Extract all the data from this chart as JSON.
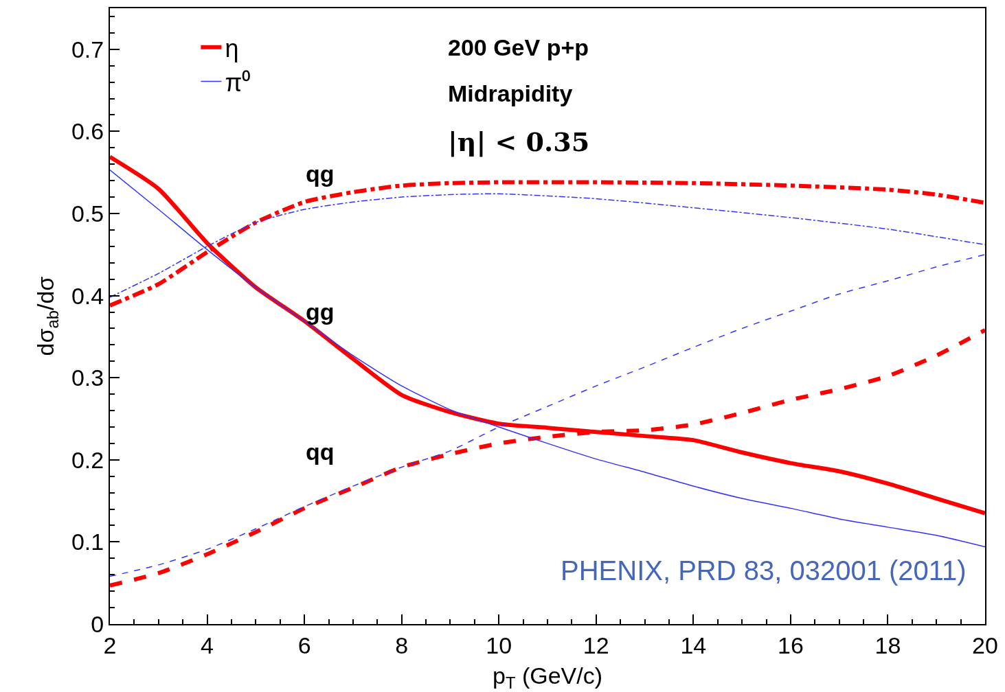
{
  "chart_data": {
    "type": "line",
    "xlabel": "p$_{T}$ (GeV/c)",
    "ylabel": "dσ$_{ab}$/dσ",
    "xlim": [
      2,
      20
    ],
    "xticks": [
      2,
      4,
      6,
      8,
      10,
      12,
      14,
      16,
      18,
      20
    ],
    "ylim": [
      0,
      0.75
    ],
    "yticks": [
      0,
      0.1,
      0.2,
      0.3,
      0.4,
      0.5,
      0.6,
      0.7
    ],
    "legend": "top left",
    "marker": "none",
    "series": [
      {
        "name": "η",
        "color": "#ff0000",
        "line_style": "solid",
        "x": [
          2,
          3,
          4,
          5,
          6,
          7,
          8,
          9,
          10,
          11,
          12,
          13,
          14,
          15,
          16,
          17,
          18,
          19,
          20
        ],
        "values": [
          0.569,
          0.53,
          0.464,
          0.41,
          0.369,
          0.323,
          0.279,
          0.258,
          0.244,
          0.239,
          0.234,
          0.229,
          0.224,
          0.209,
          0.196,
          0.186,
          0.171,
          0.153,
          0.135
        ]
      },
      {
        "color": "#ff0000",
        "line_style": "dashdot",
        "x": [
          2,
          3,
          4,
          5,
          6,
          7,
          8,
          9,
          10,
          12,
          14,
          16,
          18,
          19,
          20
        ],
        "values": [
          0.388,
          0.414,
          0.453,
          0.489,
          0.514,
          0.526,
          0.534,
          0.537,
          0.538,
          0.538,
          0.537,
          0.534,
          0.529,
          0.523,
          0.513
        ]
      },
      {
        "color": "#ff0000",
        "line_style": "dashed",
        "x": [
          2,
          3,
          4,
          5,
          6,
          7,
          8,
          9,
          10,
          11,
          12,
          13,
          14,
          15,
          16,
          17,
          18,
          19,
          20
        ],
        "values": [
          0.047,
          0.062,
          0.085,
          0.112,
          0.141,
          0.166,
          0.191,
          0.207,
          0.22,
          0.228,
          0.234,
          0.236,
          0.243,
          0.257,
          0.273,
          0.286,
          0.302,
          0.327,
          0.358
        ]
      },
      {
        "name": "π⁰",
        "color": "#3333ff",
        "line_style": "solid",
        "x": [
          2,
          3,
          4,
          5,
          6,
          7,
          8,
          9,
          10,
          11,
          12,
          13,
          14,
          15,
          16,
          17,
          18,
          19,
          20
        ],
        "values": [
          0.553,
          0.505,
          0.456,
          0.41,
          0.369,
          0.327,
          0.29,
          0.261,
          0.24,
          0.22,
          0.201,
          0.185,
          0.168,
          0.153,
          0.141,
          0.128,
          0.118,
          0.108,
          0.094
        ]
      },
      {
        "color": "#3333ff",
        "line_style": "dashdot",
        "x": [
          2,
          3,
          4,
          5,
          6,
          7,
          8,
          9,
          10,
          12,
          14,
          16,
          18,
          20
        ],
        "values": [
          0.398,
          0.427,
          0.46,
          0.489,
          0.505,
          0.514,
          0.52,
          0.523,
          0.524,
          0.518,
          0.507,
          0.495,
          0.481,
          0.462
        ]
      },
      {
        "color": "#3333ff",
        "line_style": "dashed",
        "x": [
          2,
          3,
          4,
          5,
          6,
          7,
          8,
          9,
          10,
          11,
          12,
          13,
          14,
          15,
          16,
          17,
          18,
          19,
          20
        ],
        "values": [
          0.058,
          0.072,
          0.091,
          0.116,
          0.143,
          0.168,
          0.191,
          0.211,
          0.24,
          0.265,
          0.29,
          0.313,
          0.337,
          0.36,
          0.381,
          0.402,
          0.418,
          0.435,
          0.45
        ]
      }
    ],
    "annotations": [
      "qg",
      "gg",
      "qq",
      "200 GeV p+p",
      "Midrapidity",
      "|η| < 0.35",
      "PHENIX, PRD 83, 032001 (2011)"
    ]
  }
}
